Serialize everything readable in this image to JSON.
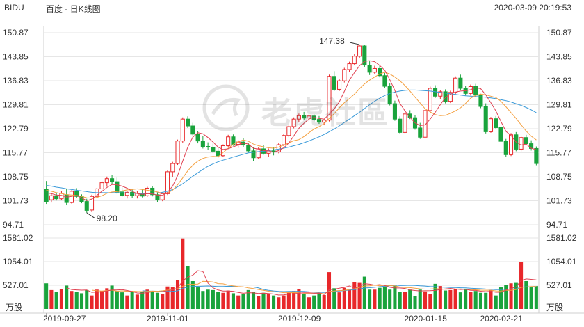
{
  "header": {
    "symbol": "BIDU",
    "title": "百度 - 日K线图",
    "timestamp": "2020-03-09 20:19:53"
  },
  "watermark": {
    "text": "老虎社區"
  },
  "colors": {
    "up": "#e8272a",
    "down": "#19a33c",
    "ma5": "#e04050",
    "ma10": "#f4a040",
    "ma20": "#3a9ad9",
    "grid": "#e6e6e6",
    "text": "#333333"
  },
  "chart_data": [
    {
      "type": "candlestick",
      "title": "",
      "price_axis_ticks": [
        "150.87",
        "143.85",
        "136.83",
        "129.81",
        "122.79",
        "115.77",
        "108.75",
        "101.73",
        "94.71"
      ],
      "ylim": [
        94.71,
        150.87
      ],
      "date_ticks": [
        "2019-09-27",
        "2019-11-01",
        "2019-12-09",
        "2020-01-15",
        "2020-02-21"
      ],
      "annotations": [
        {
          "label": "147.38",
          "type": "high"
        },
        {
          "label": "98.20",
          "type": "low"
        }
      ],
      "ohlc": [
        [
          105.0,
          107.5,
          100.8,
          101.5
        ],
        [
          102.0,
          103.8,
          101.2,
          103.2
        ],
        [
          103.2,
          104.2,
          101.8,
          102.3
        ],
        [
          102.3,
          104.5,
          101.9,
          103.9
        ],
        [
          103.5,
          105.2,
          100.4,
          101.2
        ],
        [
          101.2,
          104.8,
          100.9,
          104.5
        ],
        [
          104.5,
          105.4,
          102.5,
          103.0
        ],
        [
          103.0,
          103.6,
          101.0,
          101.5
        ],
        [
          101.5,
          102.3,
          98.2,
          98.9
        ],
        [
          99.0,
          103.5,
          98.6,
          103.0
        ],
        [
          103.0,
          105.5,
          102.7,
          105.2
        ],
        [
          105.2,
          107.6,
          104.6,
          107.0
        ],
        [
          107.0,
          108.8,
          105.8,
          108.2
        ],
        [
          108.2,
          109.2,
          106.5,
          107.3
        ],
        [
          107.3,
          108.5,
          103.8,
          104.3
        ],
        [
          104.3,
          105.6,
          102.9,
          103.3
        ],
        [
          103.3,
          104.6,
          102.4,
          104.2
        ],
        [
          104.2,
          105.0,
          102.6,
          103.2
        ],
        [
          103.2,
          104.5,
          102.4,
          103.9
        ],
        [
          103.9,
          105.1,
          102.7,
          103.1
        ],
        [
          103.2,
          105.8,
          102.9,
          105.4
        ],
        [
          105.4,
          105.9,
          103.0,
          103.5
        ],
        [
          103.5,
          104.2,
          101.3,
          102.0
        ],
        [
          102.0,
          104.3,
          101.6,
          103.8
        ],
        [
          103.8,
          110.6,
          103.4,
          110.2
        ],
        [
          110.2,
          113.1,
          108.6,
          112.6
        ],
        [
          112.6,
          119.6,
          112.2,
          119.2
        ],
        [
          119.2,
          126.1,
          118.7,
          125.6
        ],
        [
          125.6,
          126.4,
          123.0,
          123.6
        ],
        [
          123.6,
          124.5,
          120.8,
          121.2
        ],
        [
          121.2,
          122.1,
          118.5,
          119.2
        ],
        [
          119.2,
          120.7,
          117.0,
          117.6
        ],
        [
          117.6,
          118.8,
          116.5,
          117.4
        ],
        [
          117.4,
          118.4,
          115.7,
          116.2
        ],
        [
          116.2,
          117.2,
          114.3,
          114.9
        ],
        [
          114.9,
          118.2,
          114.6,
          117.8
        ],
        [
          117.8,
          121.0,
          117.4,
          120.4
        ],
        [
          120.4,
          121.1,
          117.8,
          118.2
        ],
        [
          118.2,
          119.4,
          117.2,
          118.9
        ],
        [
          118.9,
          120.0,
          117.5,
          118.0
        ],
        [
          118.0,
          118.6,
          115.8,
          116.3
        ],
        [
          116.3,
          117.3,
          113.4,
          114.3
        ],
        [
          114.3,
          117.4,
          113.9,
          116.9
        ],
        [
          116.9,
          118.0,
          115.2,
          115.6
        ],
        [
          115.6,
          117.0,
          114.6,
          116.3
        ],
        [
          116.3,
          117.5,
          115.0,
          116.0
        ],
        [
          116.0,
          118.6,
          115.6,
          118.1
        ],
        [
          118.1,
          121.3,
          117.7,
          120.8
        ],
        [
          120.8,
          123.9,
          120.3,
          123.4
        ],
        [
          123.4,
          126.1,
          122.9,
          125.6
        ],
        [
          125.6,
          127.2,
          124.6,
          126.6
        ],
        [
          126.6,
          127.7,
          125.4,
          125.9
        ],
        [
          125.9,
          127.0,
          124.9,
          126.5
        ],
        [
          126.5,
          127.0,
          125.0,
          125.5
        ],
        [
          125.5,
          126.5,
          124.2,
          124.7
        ],
        [
          124.7,
          125.6,
          123.8,
          125.3
        ],
        [
          125.3,
          138.6,
          124.9,
          138.1
        ],
        [
          138.1,
          139.6,
          133.8,
          134.3
        ],
        [
          134.3,
          137.4,
          133.8,
          136.8
        ],
        [
          136.8,
          140.6,
          136.3,
          140.1
        ],
        [
          140.1,
          142.4,
          139.4,
          141.8
        ],
        [
          141.8,
          144.6,
          141.3,
          144.0
        ],
        [
          144.0,
          147.4,
          143.5,
          147.0
        ],
        [
          147.0,
          147.4,
          140.8,
          141.4
        ],
        [
          141.4,
          142.5,
          138.5,
          139.3
        ],
        [
          139.3,
          141.2,
          138.8,
          140.4
        ],
        [
          140.4,
          141.5,
          137.8,
          138.3
        ],
        [
          138.3,
          139.1,
          134.6,
          135.2
        ],
        [
          135.2,
          136.0,
          129.6,
          130.1
        ],
        [
          130.1,
          131.0,
          125.1,
          125.6
        ],
        [
          125.6,
          126.4,
          121.2,
          121.7
        ],
        [
          121.7,
          127.6,
          121.3,
          127.1
        ],
        [
          127.1,
          128.2,
          125.6,
          126.0
        ],
        [
          126.0,
          126.8,
          122.5,
          123.0
        ],
        [
          123.0,
          124.5,
          119.8,
          120.3
        ],
        [
          120.3,
          128.6,
          119.9,
          128.1
        ],
        [
          128.1,
          135.1,
          127.5,
          134.6
        ],
        [
          134.6,
          135.5,
          131.8,
          132.3
        ],
        [
          132.3,
          134.1,
          131.5,
          133.6
        ],
        [
          133.6,
          134.3,
          130.2,
          130.8
        ],
        [
          130.8,
          133.9,
          130.3,
          133.4
        ],
        [
          133.4,
          138.1,
          132.9,
          137.6
        ],
        [
          137.6,
          138.6,
          134.1,
          134.6
        ],
        [
          134.6,
          135.2,
          132.5,
          133.1
        ],
        [
          133.1,
          135.7,
          132.5,
          135.1
        ],
        [
          135.1,
          135.9,
          132.1,
          132.6
        ],
        [
          132.6,
          133.0,
          128.8,
          129.3
        ],
        [
          129.3,
          130.2,
          121.4,
          121.9
        ],
        [
          121.9,
          126.2,
          121.6,
          125.7
        ],
        [
          125.7,
          126.5,
          122.6,
          123.1
        ],
        [
          123.1,
          123.9,
          118.6,
          119.1
        ],
        [
          119.1,
          119.8,
          114.6,
          115.2
        ],
        [
          115.2,
          121.5,
          114.8,
          121.0
        ],
        [
          121.0,
          121.8,
          116.2,
          116.8
        ],
        [
          116.8,
          120.7,
          116.2,
          120.2
        ],
        [
          120.2,
          121.0,
          117.9,
          118.4
        ],
        [
          118.4,
          119.4,
          116.4,
          117.0
        ],
        [
          117.0,
          117.6,
          112.1,
          112.6
        ]
      ],
      "ma5": [
        104.0,
        103.8,
        103.4,
        103.3,
        102.8,
        103.0,
        103.3,
        102.5,
        101.8,
        102.2,
        103.3,
        104.5,
        105.6,
        106.5,
        106.4,
        106.0,
        105.4,
        104.5,
        103.8,
        103.6,
        103.8,
        103.7,
        103.4,
        103.3,
        104.2,
        106.0,
        109.1,
        113.3,
        117.4,
        120.3,
        121.6,
        121.3,
        120.2,
        118.9,
        117.4,
        116.7,
        116.9,
        117.5,
        118.0,
        118.6,
        118.3,
        117.1,
        116.8,
        116.4,
        116.3,
        115.9,
        116.4,
        117.2,
        118.6,
        120.7,
        122.9,
        124.4,
        125.6,
        126.1,
        125.8,
        125.6,
        127.0,
        128.6,
        130.6,
        133.7,
        137.0,
        139.2,
        141.2,
        142.5,
        142.7,
        142.4,
        141.3,
        139.9,
        137.1,
        134.0,
        130.2,
        128.0,
        126.1,
        124.5,
        123.7,
        123.9,
        125.6,
        127.6,
        129.8,
        131.9,
        132.9,
        133.5,
        133.8,
        133.9,
        134.2,
        134.8,
        134.5,
        132.7,
        130.4,
        128.0,
        124.9,
        122.0,
        120.8,
        118.9,
        118.0,
        118.3,
        117.1,
        116.6
      ],
      "ma10": [
        104.8,
        104.5,
        104.1,
        103.8,
        103.5,
        103.4,
        103.3,
        103.0,
        102.6,
        102.5,
        102.7,
        103.2,
        103.9,
        104.3,
        104.4,
        104.6,
        104.9,
        105.0,
        105.2,
        105.0,
        104.8,
        104.6,
        104.3,
        103.9,
        104.0,
        104.8,
        106.4,
        108.4,
        110.5,
        112.1,
        113.3,
        114.1,
        114.5,
        114.7,
        114.6,
        115.8,
        117.1,
        118.2,
        119.0,
        119.5,
        119.1,
        118.3,
        117.8,
        117.5,
        117.2,
        117.1,
        117.4,
        118.0,
        118.6,
        119.3,
        119.6,
        120.5,
        121.6,
        122.7,
        123.4,
        124.3,
        125.8,
        127.2,
        128.9,
        130.4,
        131.6,
        132.9,
        134.5,
        135.9,
        137.0,
        137.9,
        138.8,
        139.3,
        138.8,
        137.9,
        136.8,
        135.4,
        133.8,
        132.0,
        130.3,
        128.6,
        127.7,
        126.9,
        126.6,
        126.7,
        127.3,
        128.0,
        128.9,
        130.2,
        131.7,
        132.5,
        132.9,
        132.7,
        132.3,
        131.9,
        130.8,
        129.2,
        127.5,
        125.8,
        123.9,
        122.1,
        120.6,
        119.5
      ],
      "ma20": [
        106.2,
        106.0,
        105.7,
        105.5,
        105.2,
        105.0,
        104.8,
        104.6,
        104.4,
        104.2,
        104.1,
        104.1,
        104.1,
        104.1,
        104.1,
        104.0,
        104.0,
        103.9,
        103.9,
        103.8,
        103.8,
        103.9,
        104.0,
        104.2,
        104.5,
        105.0,
        105.8,
        106.7,
        107.8,
        108.9,
        109.9,
        110.9,
        111.8,
        112.5,
        113.1,
        113.6,
        114.0,
        114.5,
        114.9,
        115.3,
        115.7,
        115.9,
        116.1,
        116.2,
        116.4,
        116.6,
        116.8,
        117.1,
        117.4,
        117.8,
        118.2,
        118.7,
        119.2,
        119.8,
        120.4,
        121.1,
        121.9,
        122.7,
        123.6,
        124.6,
        125.6,
        126.6,
        127.6,
        128.7,
        129.8,
        130.8,
        131.7,
        132.5,
        133.1,
        133.5,
        133.8,
        134.0,
        134.1,
        134.1,
        134.0,
        133.9,
        133.8,
        133.6,
        133.4,
        133.2,
        133.0,
        132.8,
        132.6,
        132.4,
        132.3,
        132.2,
        132.1,
        132.0,
        131.8,
        131.6,
        131.3,
        131.0,
        130.6,
        130.1,
        129.6,
        129.0,
        128.3,
        127.5
      ],
      "volume_axis_ticks": [
        "1581.02",
        "1054.01",
        "527.01"
      ],
      "volume_ylim": [
        0,
        1581.02
      ],
      "volume_unit": "万股",
      "volume": [
        570,
        420,
        380,
        440,
        520,
        400,
        380,
        350,
        420,
        300,
        430,
        400,
        460,
        520,
        400,
        370,
        300,
        390,
        320,
        380,
        430,
        400,
        360,
        340,
        500,
        480,
        640,
        1570,
        950,
        620,
        480,
        400,
        430,
        420,
        380,
        360,
        410,
        350,
        300,
        330,
        420,
        380,
        280,
        360,
        330,
        300,
        260,
        300,
        370,
        400,
        440,
        330,
        260,
        300,
        350,
        310,
        820,
        460,
        370,
        470,
        440,
        600,
        580,
        720,
        430,
        430,
        470,
        500,
        430,
        520,
        380,
        380,
        430,
        280,
        430,
        390,
        340,
        560,
        510,
        410,
        420,
        450,
        370,
        450,
        380,
        400,
        360,
        360,
        420,
        300,
        480,
        530,
        570,
        580,
        1040,
        620,
        480,
        510
      ],
      "vol_ma5": [
        null,
        null,
        null,
        null,
        466,
        432,
        424,
        418,
        422,
        370,
        376,
        378,
        402,
        422,
        422,
        430,
        410,
        388,
        356,
        352,
        364,
        384,
        378,
        386,
        406,
        424,
        464,
        626,
        708,
        752,
        852,
        832,
        576,
        470,
        422,
        398,
        400,
        394,
        368,
        350,
        362,
        358,
        346,
        354,
        344,
        334,
        310,
        314,
        332,
        336,
        354,
        360,
        360,
        350,
        352,
        322,
        428,
        440,
        462,
        482,
        512,
        460,
        500,
        562,
        552,
        532,
        542,
        522,
        482,
        466,
        466,
        456,
        424,
        410,
        402,
        404,
        406,
        412,
        434,
        446,
        458,
        444,
        432,
        438,
        414,
        412,
        396,
        386,
        392,
        372,
        372,
        420,
        456,
        492,
        634,
        668,
        658,
        646
      ],
      "vol_ma10": [
        null,
        null,
        null,
        null,
        null,
        null,
        null,
        null,
        null,
        418,
        404,
        400,
        410,
        418,
        396,
        403,
        394,
        395,
        389,
        387,
        390,
        397,
        393,
        404,
        418,
        426,
        451,
        506,
        545,
        551,
        555,
        615,
        610,
        600,
        564,
        559,
        532,
        513,
        500,
        493,
        470,
        454,
        433,
        414,
        395,
        383,
        378,
        363,
        363,
        364,
        363,
        350,
        351,
        352,
        356,
        338,
        390,
        402,
        411,
        415,
        433,
        450,
        480,
        511,
        514,
        532,
        514,
        527,
        519,
        513,
        489,
        478,
        474,
        461,
        448,
        442,
        444,
        449,
        448,
        439,
        441,
        444,
        446,
        436,
        424,
        426,
        419,
        417,
        417,
        401,
        398,
        414,
        416,
        431,
        481,
        488,
        499,
        499
      ],
      "vol_ma20": [
        null,
        null,
        null,
        null,
        null,
        null,
        null,
        null,
        null,
        null,
        null,
        null,
        null,
        null,
        null,
        null,
        null,
        null,
        null,
        404,
        398,
        397,
        396,
        391,
        390,
        393,
        405,
        461,
        485,
        502,
        504,
        507,
        511,
        505,
        500,
        500,
        505,
        503,
        492,
        489,
        489,
        488,
        470,
        434,
        416,
        401,
        392,
        387,
        390,
        391,
        394,
        390,
        382,
        375,
        372,
        369,
        390,
        396,
        399,
        409,
        420,
        431,
        445,
        467,
        472,
        482,
        496,
        508,
        515,
        530,
        521,
        522,
        527,
        524,
        515,
        510,
        498,
        498,
        486,
        484,
        478,
        476,
        471,
        468,
        460,
        455,
        451,
        443,
        438,
        429,
        432,
        440,
        444,
        448,
        486,
        495,
        496,
        503
      ]
    }
  ]
}
